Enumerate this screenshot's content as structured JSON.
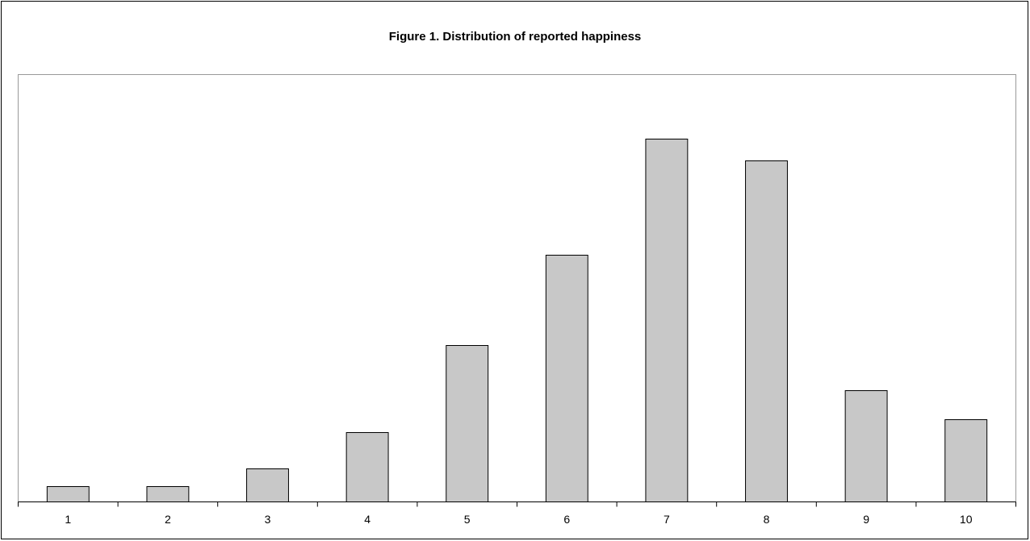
{
  "chart_data": {
    "type": "bar",
    "title": "Figure 1. Distribution of reported happiness",
    "categories": [
      "1",
      "2",
      "3",
      "4",
      "5",
      "6",
      "7",
      "8",
      "9",
      "10"
    ],
    "values": [
      19,
      19,
      41,
      86,
      194,
      306,
      450,
      423,
      138,
      102
    ],
    "color": "#c8c8c8",
    "ylim": [
      0,
      530
    ]
  }
}
